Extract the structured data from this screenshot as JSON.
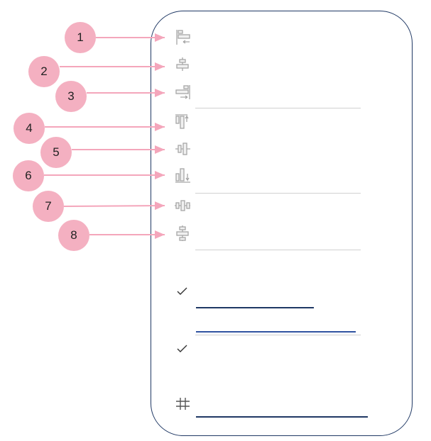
{
  "callouts": [
    {
      "number": "1",
      "icon": "align-left-icon"
    },
    {
      "number": "2",
      "icon": "align-center-icon"
    },
    {
      "number": "3",
      "icon": "align-right-icon"
    },
    {
      "number": "4",
      "icon": "align-top-icon"
    },
    {
      "number": "5",
      "icon": "align-middle-icon"
    },
    {
      "number": "6",
      "icon": "align-bottom-icon"
    },
    {
      "number": "7",
      "icon": "distribute-horizontally-icon"
    },
    {
      "number": "8",
      "icon": "distribute-vertically-icon"
    }
  ],
  "colors": {
    "badge": "#f4b0c1",
    "arrow": "#f4a6bb",
    "panel_border": "#1f3864",
    "icon": "#a6a6a6",
    "underline": "#1f3864"
  }
}
